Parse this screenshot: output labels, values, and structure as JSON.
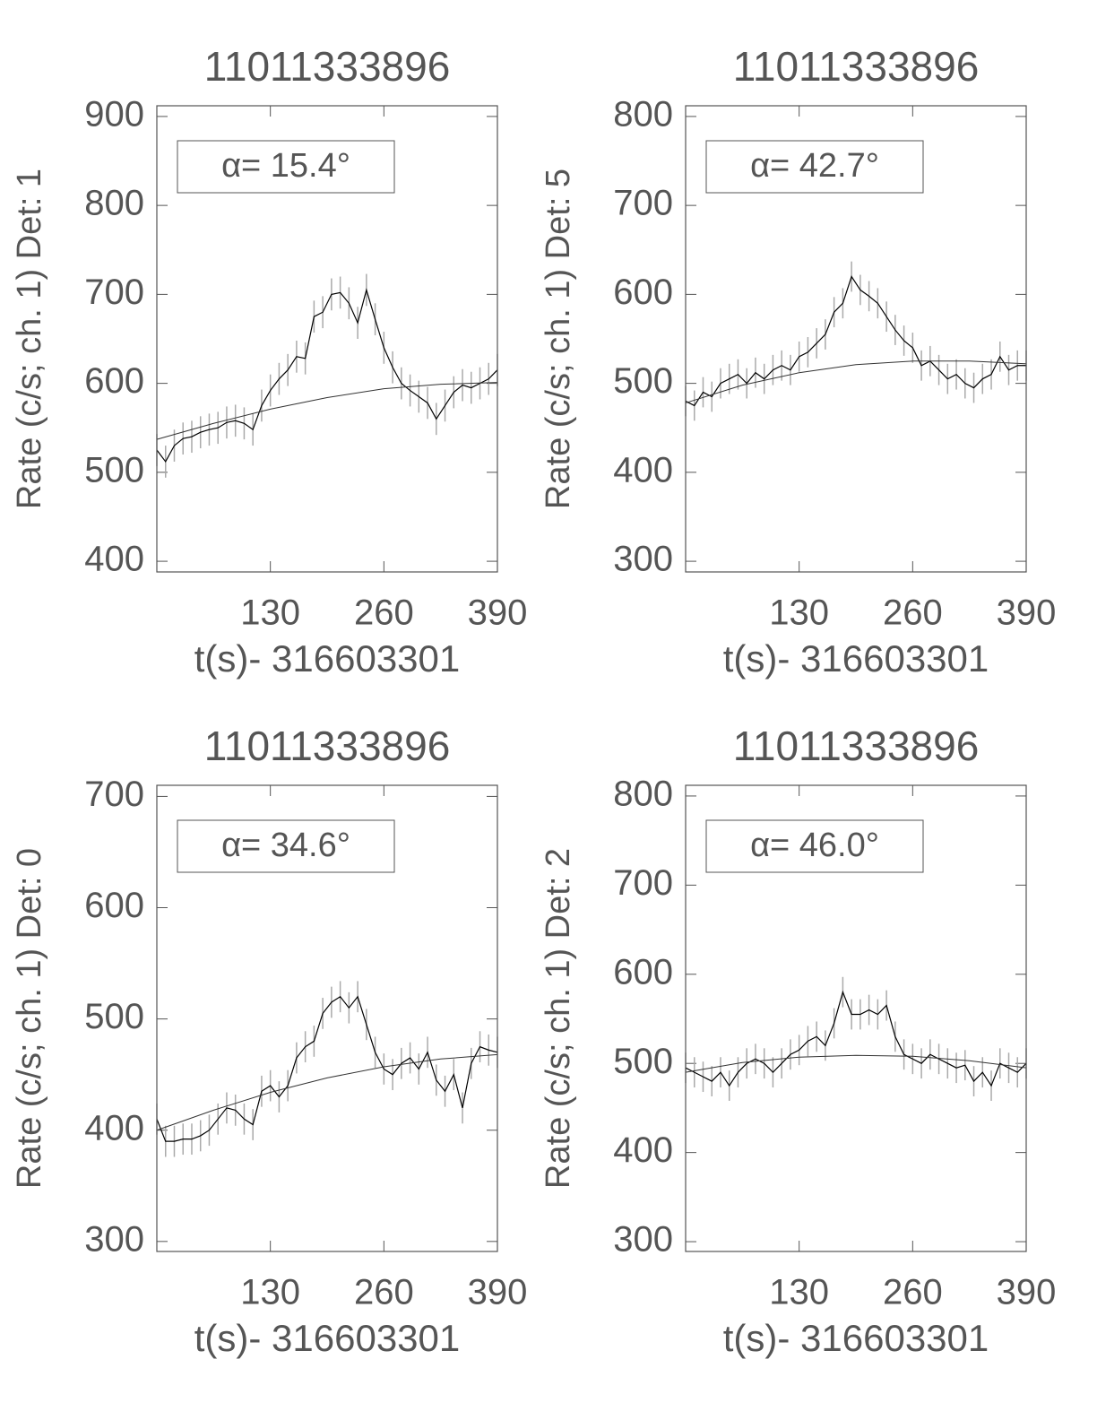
{
  "chart_data": [
    {
      "type": "line",
      "title": "11011333896",
      "annotation": "α= 15.4°",
      "xlabel": "t(s)- 316603301",
      "ylabel": "Rate (c/s; ch. 1) Det: 1",
      "x": [
        0,
        10,
        20,
        30,
        40,
        50,
        60,
        70,
        80,
        90,
        100,
        110,
        120,
        130,
        140,
        150,
        160,
        170,
        180,
        190,
        200,
        210,
        220,
        230,
        240,
        250,
        260,
        270,
        280,
        290,
        300,
        310,
        320,
        330,
        340,
        350,
        360,
        370,
        380,
        390
      ],
      "values": [
        525,
        512,
        530,
        538,
        540,
        545,
        548,
        550,
        556,
        558,
        555,
        548,
        575,
        592,
        605,
        615,
        630,
        628,
        675,
        680,
        700,
        702,
        690,
        668,
        705,
        672,
        640,
        618,
        600,
        592,
        585,
        578,
        560,
        575,
        590,
        598,
        595,
        600,
        605,
        615
      ],
      "error": 18,
      "color": "#000000",
      "error_color": "#aaaaaa",
      "fit": {
        "x": [
          0,
          65,
          130,
          195,
          260,
          325,
          390
        ],
        "values": [
          537,
          555,
          571,
          584,
          594,
          599,
          601
        ]
      },
      "xlim": [
        0,
        390
      ],
      "ylim": [
        388,
        912
      ],
      "xticks": [
        130,
        260,
        390
      ],
      "yticks": [
        400,
        500,
        600,
        700,
        800,
        900
      ]
    },
    {
      "type": "line",
      "title": "11011333896",
      "annotation": "α= 42.7°",
      "xlabel": "t(s)- 316603301",
      "ylabel": "Rate (c/s; ch. 1) Det: 5",
      "x": [
        0,
        10,
        20,
        30,
        40,
        50,
        60,
        70,
        80,
        90,
        100,
        110,
        120,
        130,
        140,
        150,
        160,
        170,
        180,
        190,
        200,
        210,
        220,
        230,
        240,
        250,
        260,
        270,
        280,
        290,
        300,
        310,
        320,
        330,
        340,
        350,
        360,
        370,
        380,
        390
      ],
      "values": [
        480,
        475,
        490,
        485,
        500,
        505,
        510,
        500,
        512,
        505,
        515,
        520,
        515,
        530,
        535,
        545,
        555,
        580,
        590,
        620,
        605,
        598,
        590,
        575,
        560,
        548,
        540,
        520,
        525,
        515,
        505,
        510,
        500,
        495,
        505,
        510,
        530,
        515,
        520,
        520
      ],
      "error": 17,
      "color": "#000000",
      "error_color": "#aaaaaa",
      "fit": {
        "x": [
          0,
          65,
          130,
          195,
          260,
          325,
          390
        ],
        "values": [
          478,
          498,
          512,
          521,
          525,
          525,
          522
        ]
      },
      "xlim": [
        0,
        390
      ],
      "ylim": [
        288,
        812
      ],
      "xticks": [
        130,
        260,
        390
      ],
      "yticks": [
        300,
        400,
        500,
        600,
        700,
        800
      ]
    },
    {
      "type": "line",
      "title": "11011333896",
      "annotation": "α= 34.6°",
      "xlabel": "t(s)- 316603301",
      "ylabel": "Rate (c/s; ch. 1) Det: 0",
      "x": [
        0,
        10,
        20,
        30,
        40,
        50,
        60,
        70,
        80,
        90,
        100,
        110,
        120,
        130,
        140,
        150,
        160,
        170,
        180,
        190,
        200,
        210,
        220,
        230,
        240,
        250,
        260,
        270,
        280,
        290,
        300,
        310,
        320,
        330,
        340,
        350,
        360,
        370,
        380,
        390
      ],
      "values": [
        410,
        390,
        390,
        392,
        392,
        395,
        400,
        410,
        420,
        418,
        410,
        405,
        435,
        440,
        430,
        440,
        465,
        475,
        480,
        505,
        515,
        520,
        510,
        520,
        495,
        470,
        455,
        450,
        460,
        465,
        455,
        470,
        445,
        435,
        450,
        420,
        460,
        475,
        472,
        470
      ],
      "error": 14,
      "color": "#000000",
      "error_color": "#aaaaaa",
      "fit": {
        "x": [
          0,
          65,
          130,
          195,
          260,
          325,
          390
        ],
        "values": [
          400,
          418,
          434,
          447,
          457,
          464,
          468
        ]
      },
      "xlim": [
        0,
        390
      ],
      "ylim": [
        291,
        710
      ],
      "xticks": [
        130,
        260,
        390
      ],
      "yticks": [
        300,
        400,
        500,
        600,
        700
      ]
    },
    {
      "type": "line",
      "title": "11011333896",
      "annotation": "α= 46.0°",
      "xlabel": "t(s)- 316603301",
      "ylabel": "Rate (c/s; ch. 1) Det: 2",
      "x": [
        0,
        10,
        20,
        30,
        40,
        50,
        60,
        70,
        80,
        90,
        100,
        110,
        120,
        130,
        140,
        150,
        160,
        170,
        180,
        190,
        200,
        210,
        220,
        230,
        240,
        250,
        260,
        270,
        280,
        290,
        300,
        310,
        320,
        330,
        340,
        350,
        360,
        370,
        380,
        390
      ],
      "values": [
        495,
        490,
        485,
        480,
        490,
        475,
        490,
        500,
        505,
        500,
        490,
        500,
        510,
        515,
        525,
        530,
        520,
        545,
        580,
        555,
        555,
        560,
        555,
        565,
        530,
        510,
        505,
        500,
        510,
        505,
        500,
        495,
        498,
        480,
        490,
        475,
        500,
        495,
        490,
        500
      ],
      "error": 17,
      "color": "#000000",
      "error_color": "#aaaaaa",
      "fit": {
        "x": [
          0,
          65,
          130,
          195,
          260,
          325,
          390
        ],
        "values": [
          490,
          501,
          507,
          509,
          508,
          503,
          495
        ]
      },
      "xlim": [
        0,
        390
      ],
      "ylim": [
        289,
        812
      ],
      "xticks": [
        130,
        260,
        390
      ],
      "yticks": [
        300,
        400,
        500,
        600,
        700,
        800
      ]
    }
  ]
}
